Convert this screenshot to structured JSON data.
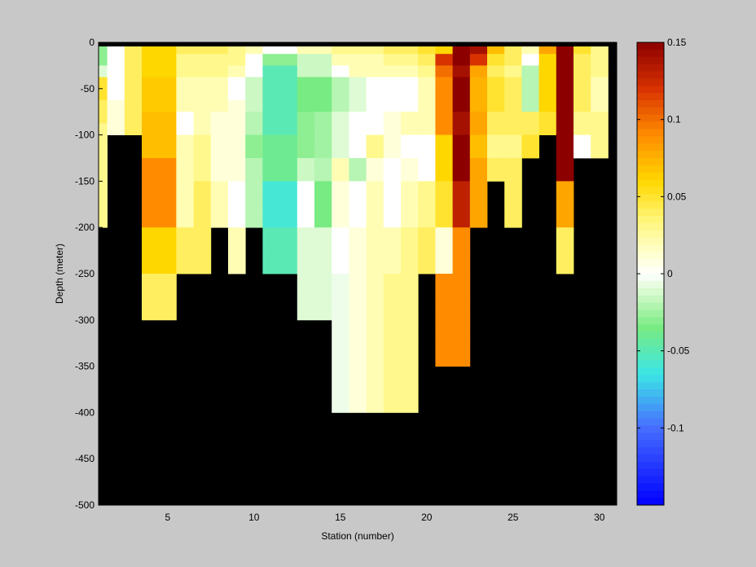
{
  "chart_data": {
    "type": "heatmap",
    "xlabel": "Station (number)",
    "ylabel": "Depth (meter)",
    "xlim": [
      1,
      31
    ],
    "ylim": [
      -500,
      0
    ],
    "xticks": [
      5,
      10,
      15,
      20,
      25,
      30
    ],
    "yticks": [
      0,
      -50,
      -100,
      -150,
      -200,
      -250,
      -300,
      -350,
      -400,
      -450,
      -500
    ],
    "colorbar": {
      "colormap": "jet-with-white-center",
      "clim": [
        -0.15,
        0.15
      ],
      "ticks": [
        0.15,
        0.1,
        0.05,
        0,
        -0.05,
        -0.1
      ],
      "tick_labels": [
        "0.15",
        "0.1",
        "0.05",
        "0",
        "-0.05",
        "-0.1"
      ]
    },
    "mask_color": "#000000",
    "background_color": "#c8c8c8",
    "stations": [
      1,
      2,
      3,
      4,
      5,
      6,
      7,
      8,
      9,
      10,
      11,
      12,
      13,
      14,
      15,
      16,
      17,
      18,
      19,
      20,
      21,
      22,
      23,
      24,
      25,
      26,
      27,
      28,
      29,
      30
    ],
    "depth_bins_top": [
      0,
      -12.5,
      -25,
      -37.5,
      -50,
      -62.5,
      -75,
      -87.5,
      -100,
      -112.5,
      -125,
      -137.5,
      -150,
      -162.5,
      -175,
      -187.5,
      -200,
      -225,
      -250,
      -275,
      -300,
      -325,
      -350,
      -375,
      -400,
      -425,
      -450,
      -475
    ],
    "depth_bins_bottom": [
      -12.5,
      -25,
      -37.5,
      -50,
      -62.5,
      -75,
      -87.5,
      -100,
      -112.5,
      -125,
      -137.5,
      -150,
      -162.5,
      -175,
      -187.5,
      -200,
      -225,
      -250,
      -275,
      -300,
      -325,
      -350,
      -375,
      -400,
      -425,
      -450,
      -475,
      -500
    ],
    "values_by_station": [
      [
        -0.03,
        -0.03,
        -0.01,
        0.05,
        0.05,
        0.04,
        0.04,
        0.03,
        0.03,
        0.03,
        0.03,
        0.03,
        0.03,
        0.03,
        0.03,
        0.03,
        null,
        null,
        null,
        null,
        null,
        null,
        null,
        null,
        null,
        null,
        null,
        null
      ],
      [
        0.0,
        0.0,
        0.0,
        0.0,
        0.0,
        0.01,
        0.01,
        0.01,
        null,
        null,
        null,
        null,
        null,
        null,
        null,
        null,
        null,
        null,
        null,
        null,
        null,
        null,
        null,
        null,
        null,
        null,
        null,
        null
      ],
      [
        0.04,
        0.04,
        0.04,
        0.04,
        0.04,
        0.04,
        0.04,
        0.04,
        null,
        null,
        null,
        null,
        null,
        null,
        null,
        null,
        null,
        null,
        null,
        null,
        null,
        null,
        null,
        null,
        null,
        null,
        null,
        null
      ],
      [
        0.06,
        0.06,
        0.06,
        0.065,
        0.065,
        0.065,
        0.07,
        0.07,
        0.07,
        0.07,
        0.09,
        0.09,
        0.09,
        0.09,
        0.09,
        0.09,
        0.06,
        0.06,
        0.04,
        0.04,
        null,
        null,
        null,
        null,
        null,
        null,
        null,
        null
      ],
      [
        0.06,
        0.06,
        0.06,
        0.065,
        0.065,
        0.065,
        0.07,
        0.07,
        0.07,
        0.07,
        0.09,
        0.09,
        0.09,
        0.09,
        0.09,
        0.09,
        0.06,
        0.06,
        0.04,
        0.04,
        null,
        null,
        null,
        null,
        null,
        null,
        null,
        null
      ],
      [
        0.04,
        0.03,
        0.03,
        0.02,
        0.02,
        0.02,
        0.0,
        0.0,
        0.02,
        0.02,
        0.02,
        0.02,
        0.02,
        0.02,
        0.02,
        0.02,
        0.04,
        0.04,
        null,
        null,
        null,
        null,
        null,
        null,
        null,
        null,
        null,
        null
      ],
      [
        0.04,
        0.03,
        0.03,
        0.02,
        0.02,
        0.02,
        0.02,
        0.02,
        0.03,
        0.03,
        0.03,
        0.03,
        0.04,
        0.04,
        0.04,
        0.04,
        0.04,
        0.04,
        null,
        null,
        null,
        null,
        null,
        null,
        null,
        null,
        null,
        null
      ],
      [
        0.04,
        0.03,
        0.03,
        0.02,
        0.02,
        0.02,
        0.01,
        0.01,
        0.01,
        0.01,
        0.01,
        0.01,
        0.02,
        0.02,
        0.02,
        0.02,
        null,
        null,
        null,
        null,
        null,
        null,
        null,
        null,
        null,
        null,
        null,
        null
      ],
      [
        0.03,
        0.03,
        0.02,
        0.0,
        0.0,
        0.01,
        0.01,
        0.01,
        0.01,
        0.01,
        0.01,
        0.01,
        0.0,
        0.0,
        0.0,
        0.0,
        0.02,
        0.02,
        null,
        null,
        null,
        null,
        null,
        null,
        null,
        null,
        null,
        null
      ],
      [
        0.02,
        0.0,
        0.0,
        -0.015,
        -0.015,
        -0.015,
        -0.02,
        -0.02,
        -0.03,
        -0.03,
        -0.02,
        -0.02,
        -0.02,
        -0.02,
        -0.02,
        -0.02,
        null,
        null,
        null,
        null,
        null,
        null,
        null,
        null,
        null,
        null,
        null,
        null
      ],
      [
        0.0,
        -0.03,
        -0.05,
        -0.05,
        -0.05,
        -0.05,
        -0.05,
        -0.05,
        -0.04,
        -0.04,
        -0.04,
        -0.04,
        -0.06,
        -0.06,
        -0.06,
        -0.06,
        -0.05,
        -0.05,
        null,
        null,
        null,
        null,
        null,
        null,
        null,
        null,
        null,
        null
      ],
      [
        0.0,
        -0.03,
        -0.05,
        -0.05,
        -0.05,
        -0.05,
        -0.05,
        -0.05,
        -0.04,
        -0.04,
        -0.04,
        -0.04,
        -0.06,
        -0.06,
        -0.06,
        -0.06,
        -0.05,
        -0.05,
        null,
        null,
        null,
        null,
        null,
        null,
        null,
        null,
        null,
        null
      ],
      [
        0.02,
        -0.015,
        -0.015,
        -0.035,
        -0.035,
        -0.035,
        -0.03,
        -0.03,
        -0.03,
        -0.03,
        -0.015,
        -0.015,
        0.0,
        0.0,
        0.0,
        0.0,
        -0.01,
        -0.01,
        -0.01,
        -0.01,
        null,
        null,
        null,
        null,
        null,
        null,
        null,
        null
      ],
      [
        0.02,
        -0.015,
        -0.015,
        -0.035,
        -0.035,
        -0.035,
        -0.025,
        -0.025,
        -0.025,
        -0.025,
        -0.02,
        -0.02,
        -0.035,
        -0.035,
        -0.035,
        -0.035,
        -0.01,
        -0.01,
        -0.01,
        -0.01,
        null,
        null,
        null,
        null,
        null,
        null,
        null,
        null
      ],
      [
        0.03,
        0.02,
        0.0,
        -0.02,
        -0.02,
        -0.02,
        -0.01,
        -0.01,
        -0.01,
        -0.01,
        0.02,
        0.02,
        0.01,
        0.01,
        0.01,
        0.01,
        0.0,
        0.0,
        -0.005,
        -0.005,
        -0.005,
        -0.005,
        -0.005,
        -0.005,
        null,
        null,
        null,
        null
      ],
      [
        0.03,
        0.02,
        0.02,
        -0.01,
        -0.01,
        -0.01,
        0.0,
        0.0,
        0.0,
        0.0,
        -0.02,
        -0.02,
        0.0,
        0.0,
        0.0,
        0.0,
        0.01,
        0.01,
        0.01,
        0.01,
        0.01,
        0.01,
        0.01,
        0.01,
        null,
        null,
        null,
        null
      ],
      [
        0.03,
        0.02,
        0.02,
        0.0,
        0.0,
        0.0,
        0.0,
        0.0,
        0.03,
        0.03,
        0.01,
        0.01,
        0.02,
        0.02,
        0.02,
        0.02,
        0.02,
        0.02,
        0.02,
        0.02,
        0.02,
        0.02,
        0.02,
        0.02,
        null,
        null,
        null,
        null
      ],
      [
        0.04,
        0.03,
        0.02,
        0.0,
        0.0,
        0.0,
        0.01,
        0.01,
        0.01,
        0.01,
        0.0,
        0.0,
        0.0,
        0.0,
        0.0,
        0.0,
        0.02,
        0.02,
        0.03,
        0.03,
        0.03,
        0.03,
        0.03,
        0.03,
        null,
        null,
        null,
        null
      ],
      [
        0.04,
        0.03,
        0.02,
        0.0,
        0.0,
        0.0,
        0.02,
        0.02,
        0.0,
        0.0,
        0.01,
        0.01,
        0.02,
        0.02,
        0.02,
        0.02,
        0.03,
        0.03,
        0.03,
        0.03,
        0.03,
        0.03,
        0.03,
        0.03,
        null,
        null,
        null,
        null
      ],
      [
        0.05,
        0.04,
        0.03,
        0.02,
        0.02,
        0.02,
        0.02,
        0.02,
        0.0,
        0.0,
        0.0,
        0.0,
        0.03,
        0.03,
        0.03,
        0.03,
        0.04,
        0.04,
        null,
        null,
        null,
        null,
        null,
        null,
        null,
        null,
        null,
        null
      ],
      [
        0.06,
        0.12,
        0.1,
        0.09,
        0.09,
        0.09,
        0.09,
        0.09,
        0.06,
        0.06,
        0.06,
        0.06,
        0.05,
        0.05,
        0.05,
        0.05,
        0.01,
        0.01,
        0.09,
        0.09,
        0.09,
        0.09,
        null,
        null,
        null,
        null,
        null,
        null
      ],
      [
        0.15,
        0.15,
        0.14,
        0.15,
        0.15,
        0.15,
        0.14,
        0.14,
        0.15,
        0.15,
        0.15,
        0.15,
        0.13,
        0.13,
        0.13,
        0.13,
        0.09,
        0.09,
        0.09,
        0.09,
        0.09,
        0.09,
        null,
        null,
        null,
        null,
        null,
        null
      ],
      [
        0.14,
        0.12,
        0.08,
        0.075,
        0.075,
        0.075,
        0.08,
        0.08,
        0.07,
        0.07,
        0.08,
        0.08,
        0.08,
        0.08,
        0.08,
        0.08,
        null,
        null,
        null,
        null,
        null,
        null,
        null,
        null,
        null,
        null,
        null,
        null
      ],
      [
        0.07,
        0.05,
        0.04,
        0.05,
        0.05,
        0.05,
        0.04,
        0.04,
        0.03,
        0.03,
        0.04,
        0.04,
        null,
        null,
        null,
        null,
        null,
        null,
        null,
        null,
        null,
        null,
        null,
        null,
        null,
        null,
        null,
        null
      ],
      [
        0.04,
        0.04,
        0.03,
        0.04,
        0.04,
        0.04,
        0.04,
        0.04,
        0.03,
        0.03,
        0.04,
        0.04,
        0.04,
        0.04,
        0.04,
        0.04,
        null,
        null,
        null,
        null,
        null,
        null,
        null,
        null,
        null,
        null,
        null,
        null
      ],
      [
        0.02,
        0.0,
        -0.02,
        -0.02,
        -0.02,
        -0.02,
        0.04,
        0.04,
        0.05,
        0.05,
        null,
        null,
        null,
        null,
        null,
        null,
        null,
        null,
        null,
        null,
        null,
        null,
        null,
        null,
        null,
        null,
        null,
        null
      ],
      [
        0.08,
        0.06,
        0.06,
        0.06,
        0.06,
        0.06,
        0.05,
        0.05,
        null,
        null,
        null,
        null,
        null,
        null,
        null,
        null,
        null,
        null,
        null,
        null,
        null,
        null,
        null,
        null,
        null,
        null,
        null,
        null
      ],
      [
        0.15,
        0.15,
        0.15,
        0.15,
        0.15,
        0.15,
        0.15,
        0.15,
        0.15,
        0.15,
        0.15,
        0.15,
        0.08,
        0.08,
        0.08,
        0.08,
        0.04,
        0.04,
        null,
        null,
        null,
        null,
        null,
        null,
        null,
        null,
        null,
        null
      ],
      [
        0.05,
        0.04,
        0.04,
        0.04,
        0.04,
        0.04,
        0.03,
        0.03,
        0.0,
        0.0,
        null,
        null,
        null,
        null,
        null,
        null,
        null,
        null,
        null,
        null,
        null,
        null,
        null,
        null,
        null,
        null,
        null,
        null
      ],
      [
        0.03,
        0.03,
        0.03,
        0.02,
        0.02,
        0.02,
        0.03,
        0.03,
        0.03,
        0.03,
        null,
        null,
        null,
        null,
        null,
        null,
        null,
        null,
        null,
        null,
        null,
        null,
        null,
        null,
        null,
        null,
        null,
        null
      ]
    ]
  }
}
